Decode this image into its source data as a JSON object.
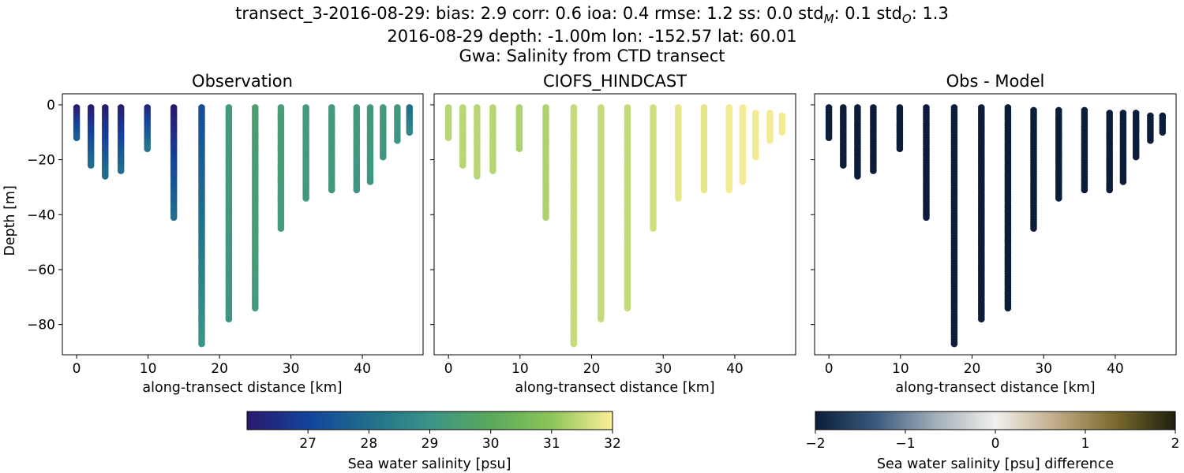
{
  "figure": {
    "title_lines": [
      "transect_3-2016-08-29: bias: 2.9  corr: 0.6  ioa: 0.4  rmse: 1.2  ss: 0.0  std",
      "2016-08-29 depth: -1.00m lon: -152.57 lat: 60.01",
      "Gwa: Salinity from CTD transect"
    ],
    "std_model_sub": "M",
    "std_model_val": ": 0.1  std",
    "std_obs_sub": "O",
    "std_obs_val": ": 1.3"
  },
  "colors": {
    "haline": [
      "#2a186c",
      "#14439c",
      "#206e8b",
      "#3c9387",
      "#5aa95c",
      "#8cc55a",
      "#fdef9a"
    ],
    "diff": [
      "#0b1d3a",
      "#3a5a7e",
      "#a2aeb8",
      "#f2f0ee",
      "#c0ac88",
      "#7a6a2c",
      "#1d1f0e"
    ]
  },
  "chart_data": [
    {
      "type": "scatter",
      "title": "Observation",
      "xlabel": "along-transect distance [km]",
      "ylabel": "Depth [m]",
      "xlim": [
        -2,
        48.5
      ],
      "ylim": [
        -91,
        4
      ],
      "xticks": [
        0,
        10,
        20,
        30,
        40
      ],
      "yticks": [
        0,
        -20,
        -40,
        -60,
        -80
      ],
      "colormap": "haline",
      "clim": [
        26,
        32
      ],
      "profiles": [
        {
          "x": 0.0,
          "min_depth": -1,
          "max_depth": -12,
          "top_value": 26.1,
          "bottom_value": 27.6
        },
        {
          "x": 2.0,
          "min_depth": -1,
          "max_depth": -22,
          "top_value": 26.1,
          "bottom_value": 28.0
        },
        {
          "x": 4.0,
          "min_depth": -1,
          "max_depth": -26,
          "top_value": 26.1,
          "bottom_value": 28.0
        },
        {
          "x": 6.2,
          "min_depth": -1,
          "max_depth": -24,
          "top_value": 26.1,
          "bottom_value": 28.0
        },
        {
          "x": 9.9,
          "min_depth": -1,
          "max_depth": -16,
          "top_value": 26.3,
          "bottom_value": 28.2
        },
        {
          "x": 13.6,
          "min_depth": -1,
          "max_depth": -41,
          "top_value": 26.0,
          "bottom_value": 28.0
        },
        {
          "x": 17.5,
          "min_depth": -1,
          "max_depth": -87,
          "top_value": 27.2,
          "bottom_value": 29.0
        },
        {
          "x": 21.3,
          "min_depth": -1,
          "max_depth": -78,
          "top_value": 29.3,
          "bottom_value": 29.1
        },
        {
          "x": 25.0,
          "min_depth": -1,
          "max_depth": -74,
          "top_value": 29.5,
          "bottom_value": 29.3
        },
        {
          "x": 28.6,
          "min_depth": -1,
          "max_depth": -45,
          "top_value": 29.4,
          "bottom_value": 29.3
        },
        {
          "x": 32.1,
          "min_depth": -1,
          "max_depth": -34,
          "top_value": 29.3,
          "bottom_value": 29.2
        },
        {
          "x": 35.7,
          "min_depth": -1,
          "max_depth": -31,
          "top_value": 29.3,
          "bottom_value": 29.2
        },
        {
          "x": 39.2,
          "min_depth": -1,
          "max_depth": -31,
          "top_value": 29.3,
          "bottom_value": 29.1
        },
        {
          "x": 41.1,
          "min_depth": -1,
          "max_depth": -28,
          "top_value": 29.3,
          "bottom_value": 29.1
        },
        {
          "x": 42.9,
          "min_depth": -1,
          "max_depth": -19,
          "top_value": 29.3,
          "bottom_value": 29.1
        },
        {
          "x": 44.9,
          "min_depth": -1,
          "max_depth": -13,
          "top_value": 29.2,
          "bottom_value": 29.1
        },
        {
          "x": 46.6,
          "min_depth": -1,
          "max_depth": -10,
          "top_value": 28.0,
          "bottom_value": 28.6
        }
      ]
    },
    {
      "type": "scatter",
      "title": "CIOFS_HINDCAST",
      "xlabel": "along-transect distance [km]",
      "xlim": [
        -2,
        48.5
      ],
      "ylim": [
        -91,
        4
      ],
      "xticks": [
        0,
        10,
        20,
        30,
        40
      ],
      "yticks": [
        0,
        -20,
        -40,
        -60,
        -80
      ],
      "colormap": "haline",
      "clim": [
        26,
        32
      ],
      "profiles": [
        {
          "x": 0.0,
          "min_depth": -1,
          "max_depth": -12,
          "top_value": 31.4,
          "bottom_value": 31.4
        },
        {
          "x": 2.0,
          "min_depth": -1,
          "max_depth": -22,
          "top_value": 31.4,
          "bottom_value": 31.4
        },
        {
          "x": 4.0,
          "min_depth": -1,
          "max_depth": -26,
          "top_value": 31.4,
          "bottom_value": 31.4
        },
        {
          "x": 6.2,
          "min_depth": -1,
          "max_depth": -24,
          "top_value": 31.4,
          "bottom_value": 31.4
        },
        {
          "x": 9.9,
          "min_depth": -1,
          "max_depth": -16,
          "top_value": 31.3,
          "bottom_value": 31.3
        },
        {
          "x": 13.6,
          "min_depth": -1,
          "max_depth": -41,
          "top_value": 31.3,
          "bottom_value": 31.3
        },
        {
          "x": 17.5,
          "min_depth": -1,
          "max_depth": -87,
          "top_value": 31.5,
          "bottom_value": 31.5
        },
        {
          "x": 21.3,
          "min_depth": -1,
          "max_depth": -78,
          "top_value": 31.5,
          "bottom_value": 31.5
        },
        {
          "x": 25.0,
          "min_depth": -1,
          "max_depth": -74,
          "top_value": 31.5,
          "bottom_value": 31.5
        },
        {
          "x": 28.6,
          "min_depth": -1,
          "max_depth": -45,
          "top_value": 31.6,
          "bottom_value": 31.6
        },
        {
          "x": 32.1,
          "min_depth": -1,
          "max_depth": -34,
          "top_value": 31.8,
          "bottom_value": 31.8
        },
        {
          "x": 35.7,
          "min_depth": -1,
          "max_depth": -31,
          "top_value": 31.8,
          "bottom_value": 31.8
        },
        {
          "x": 39.2,
          "min_depth": -1,
          "max_depth": -31,
          "top_value": 31.9,
          "bottom_value": 31.9
        },
        {
          "x": 41.1,
          "min_depth": -1,
          "max_depth": -28,
          "top_value": 31.9,
          "bottom_value": 31.9
        },
        {
          "x": 42.9,
          "min_depth": -3,
          "max_depth": -19,
          "top_value": 31.9,
          "bottom_value": 31.9
        },
        {
          "x": 44.9,
          "min_depth": -3,
          "max_depth": -13,
          "top_value": 31.9,
          "bottom_value": 31.9
        },
        {
          "x": 46.6,
          "min_depth": -4,
          "max_depth": -10,
          "top_value": 31.9,
          "bottom_value": 31.9
        }
      ]
    },
    {
      "type": "scatter",
      "title": "Obs - Model",
      "xlabel": "along-transect distance [km]",
      "xlim": [
        -2,
        48.5
      ],
      "ylim": [
        -91,
        4
      ],
      "xticks": [
        0,
        10,
        20,
        30,
        40
      ],
      "yticks": [
        0,
        -20,
        -40,
        -60,
        -80
      ],
      "colormap": "diff",
      "clim": [
        -2,
        2
      ],
      "profiles": [
        {
          "x": 0.0,
          "min_depth": -1,
          "max_depth": -12,
          "top_value": -2,
          "bottom_value": -2
        },
        {
          "x": 2.0,
          "min_depth": -1,
          "max_depth": -22,
          "top_value": -2,
          "bottom_value": -2
        },
        {
          "x": 4.0,
          "min_depth": -1,
          "max_depth": -26,
          "top_value": -2,
          "bottom_value": -2
        },
        {
          "x": 6.2,
          "min_depth": -1,
          "max_depth": -24,
          "top_value": -2,
          "bottom_value": -2
        },
        {
          "x": 9.9,
          "min_depth": -1,
          "max_depth": -16,
          "top_value": -2,
          "bottom_value": -2
        },
        {
          "x": 13.6,
          "min_depth": -1,
          "max_depth": -41,
          "top_value": -2,
          "bottom_value": -2
        },
        {
          "x": 17.5,
          "min_depth": -1,
          "max_depth": -87,
          "top_value": -2,
          "bottom_value": -2
        },
        {
          "x": 21.3,
          "min_depth": -1,
          "max_depth": -78,
          "top_value": -2,
          "bottom_value": -2
        },
        {
          "x": 25.0,
          "min_depth": -1,
          "max_depth": -74,
          "top_value": -2,
          "bottom_value": -2
        },
        {
          "x": 28.6,
          "min_depth": -2,
          "max_depth": -45,
          "top_value": -2,
          "bottom_value": -2
        },
        {
          "x": 32.1,
          "min_depth": -2,
          "max_depth": -34,
          "top_value": -2,
          "bottom_value": -2
        },
        {
          "x": 35.7,
          "min_depth": -2,
          "max_depth": -31,
          "top_value": -2,
          "bottom_value": -2
        },
        {
          "x": 39.2,
          "min_depth": -3,
          "max_depth": -31,
          "top_value": -2,
          "bottom_value": -2
        },
        {
          "x": 41.1,
          "min_depth": -3,
          "max_depth": -28,
          "top_value": -2,
          "bottom_value": -2
        },
        {
          "x": 42.9,
          "min_depth": -3,
          "max_depth": -19,
          "top_value": -2,
          "bottom_value": -2
        },
        {
          "x": 44.9,
          "min_depth": -4,
          "max_depth": -13,
          "top_value": -2,
          "bottom_value": -2
        },
        {
          "x": 46.6,
          "min_depth": -4,
          "max_depth": -10,
          "top_value": -2,
          "bottom_value": -2
        }
      ]
    }
  ],
  "colorbars": [
    {
      "label": "Sea water salinity [psu]",
      "colormap": "haline",
      "range": [
        26,
        32
      ],
      "ticks": [
        27,
        28,
        29,
        30,
        31,
        32
      ]
    },
    {
      "label": "Sea water salinity [psu] difference",
      "colormap": "diff",
      "range": [
        -2,
        2
      ],
      "ticks": [
        "−2",
        "−1",
        "0",
        "1",
        "2"
      ]
    }
  ]
}
